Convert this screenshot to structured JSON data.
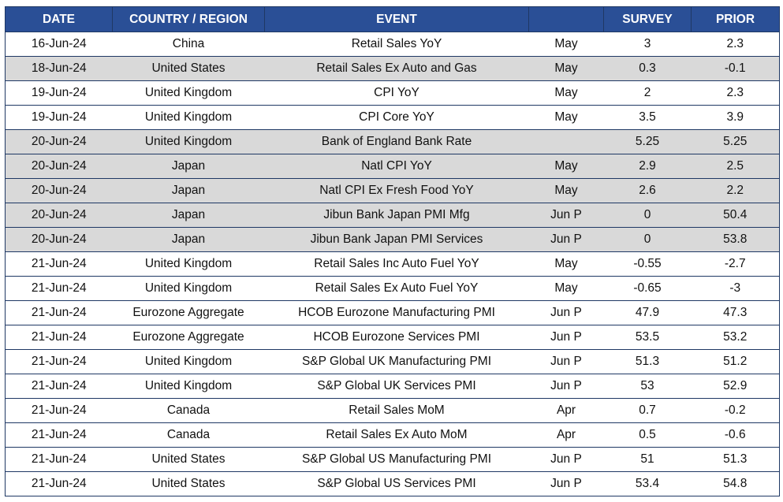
{
  "table": {
    "header": [
      "DATE",
      "COUNTRY / REGION",
      "EVENT",
      null,
      "SURVEY",
      "PRIOR"
    ],
    "rows": [
      [
        "16-Jun-24",
        "China",
        "Retail Sales YoY",
        "May",
        "3",
        "2.3"
      ],
      [
        "18-Jun-24",
        "United States",
        "Retail Sales Ex Auto and Gas",
        "May",
        "0.3",
        "-0.1"
      ],
      [
        "19-Jun-24",
        "United Kingdom",
        "CPI YoY",
        "May",
        "2",
        "2.3"
      ],
      [
        "19-Jun-24",
        "United Kingdom",
        "CPI Core YoY",
        "May",
        "3.5",
        "3.9"
      ],
      [
        "20-Jun-24",
        "United Kingdom",
        "Bank of England Bank Rate",
        null,
        "5.25",
        "5.25"
      ],
      [
        "20-Jun-24",
        "Japan",
        "Natl CPI YoY",
        "May",
        "2.9",
        "2.5"
      ],
      [
        "20-Jun-24",
        "Japan",
        "Natl CPI Ex Fresh Food YoY",
        "May",
        "2.6",
        "2.2"
      ],
      [
        "20-Jun-24",
        "Japan",
        "Jibun Bank Japan PMI Mfg",
        "Jun P",
        "0",
        "50.4"
      ],
      [
        "20-Jun-24",
        "Japan",
        "Jibun Bank Japan PMI Services",
        "Jun P",
        "0",
        "53.8"
      ],
      [
        "21-Jun-24",
        "United Kingdom",
        "Retail Sales Inc Auto Fuel YoY",
        "May",
        "-0.55",
        "-2.7"
      ],
      [
        "21-Jun-24",
        "United Kingdom",
        "Retail Sales Ex Auto Fuel YoY",
        "May",
        "-0.65",
        "-3"
      ],
      [
        "21-Jun-24",
        "Eurozone Aggregate",
        "HCOB Eurozone Manufacturing PMI",
        "Jun P",
        "47.9",
        "47.3"
      ],
      [
        "21-Jun-24",
        "Eurozone Aggregate",
        "HCOB Eurozone Services PMI",
        "Jun P",
        "53.5",
        "53.2"
      ],
      [
        "21-Jun-24",
        "United Kingdom",
        "S&P Global UK Manufacturing PMI",
        "Jun P",
        "51.3",
        "51.2"
      ],
      [
        "21-Jun-24",
        "United Kingdom",
        "S&P Global UK Services PMI",
        "Jun P",
        "53",
        "52.9"
      ],
      [
        "21-Jun-24",
        "Canada",
        "Retail Sales MoM",
        "Apr",
        "0.7",
        "-0.2"
      ],
      [
        "21-Jun-24",
        "Canada",
        "Retail Sales Ex Auto MoM",
        "Apr",
        "0.5",
        "-0.6"
      ],
      [
        "21-Jun-24",
        "United States",
        "S&P Global US Manufacturing PMI",
        "Jun P",
        "51",
        "51.3"
      ],
      [
        "21-Jun-24",
        "United States",
        "S&P Global US Services PMI",
        "Jun P",
        "53.4",
        "54.8"
      ]
    ]
  }
}
